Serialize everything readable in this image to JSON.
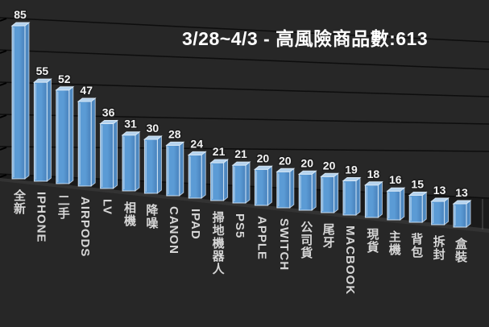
{
  "colors": {
    "background": "#272727",
    "bar_front": "#5b9bd5",
    "bar_front_light": "#7fb2e0",
    "bar_front_dark": "#4c86c0",
    "bar_top": "#b4d2ed",
    "bar_side": "#4d87bf",
    "bar_edge": "#d9e9f7",
    "gridline": "#0d0d0d",
    "floor": "#1a1a1a",
    "floor_edge": "#333333",
    "tick": "#000000",
    "value_label": "#f2f2f2",
    "category_label": "#d6d6d6",
    "title": "#ffffff"
  },
  "chart_data": {
    "type": "bar",
    "variant": "3d-column",
    "title": "3/28~4/3 - 高風險商品數:613",
    "categories": [
      "全新",
      "IPHONE",
      "二手",
      "AIRPODS",
      "LV",
      "相機",
      "降噪",
      "CANON",
      "IPAD",
      "掃地機器人",
      "PS5",
      "APPLE",
      "SWITCH",
      "公司貨",
      "尾牙",
      "MACBOOK",
      "現貨",
      "主機",
      "背包",
      "拆封",
      "盒裝"
    ],
    "values": [
      85,
      55,
      52,
      47,
      36,
      31,
      30,
      28,
      24,
      21,
      21,
      20,
      20,
      20,
      20,
      19,
      18,
      16,
      15,
      13,
      13
    ],
    "xlabel": "",
    "ylabel": "",
    "ylim": [
      0,
      90
    ],
    "gridlines": true,
    "legend": "none",
    "data_labels": "above-bars",
    "category_label_orientation": "vertical",
    "background": "dark"
  }
}
